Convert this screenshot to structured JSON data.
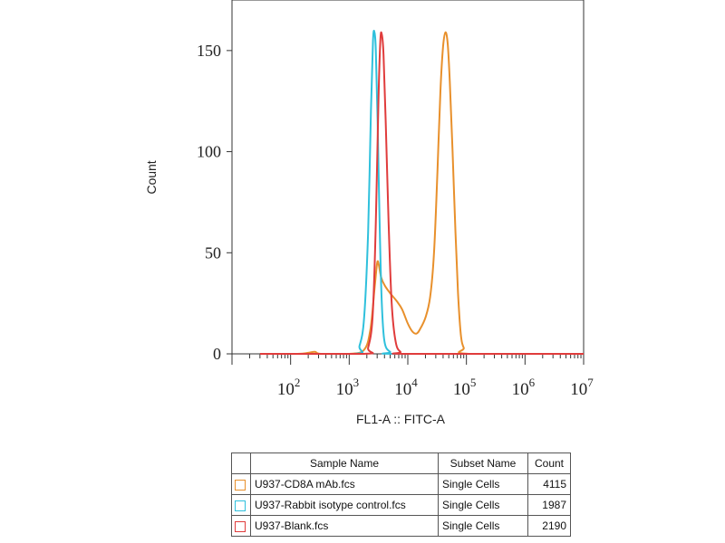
{
  "chart_data": {
    "type": "line",
    "xlabel": "FL1-A :: FITC-A",
    "ylabel": "Count",
    "xscale": "log",
    "xlim": [
      10,
      10000000
    ],
    "ylim": [
      0,
      175
    ],
    "x_ticks": [
      {
        "value": 100,
        "base": "10",
        "exp": "2"
      },
      {
        "value": 1000,
        "base": "10",
        "exp": "3"
      },
      {
        "value": 10000,
        "base": "10",
        "exp": "4"
      },
      {
        "value": 100000,
        "base": "10",
        "exp": "5"
      },
      {
        "value": 1000000,
        "base": "10",
        "exp": "6"
      },
      {
        "value": 10000000,
        "base": "10",
        "exp": "7"
      }
    ],
    "y_ticks": [
      0,
      50,
      100,
      150
    ],
    "grid": false,
    "series": [
      {
        "name": "U937-CD8A mAb.fcs",
        "color": "#E8902C",
        "points": [
          [
            30,
            0
          ],
          [
            130,
            0
          ],
          [
            200,
            0.5
          ],
          [
            260,
            1
          ],
          [
            330,
            0
          ],
          [
            1000,
            0
          ],
          [
            1800,
            2
          ],
          [
            2300,
            12
          ],
          [
            2700,
            32
          ],
          [
            3000,
            45
          ],
          [
            3200,
            44
          ],
          [
            3500,
            38
          ],
          [
            4000,
            34
          ],
          [
            5000,
            30
          ],
          [
            6500,
            26
          ],
          [
            8000,
            22
          ],
          [
            10000,
            15
          ],
          [
            12000,
            11
          ],
          [
            14000,
            10
          ],
          [
            16000,
            12
          ],
          [
            20000,
            18
          ],
          [
            24000,
            28
          ],
          [
            28000,
            50
          ],
          [
            32000,
            90
          ],
          [
            36000,
            130
          ],
          [
            40000,
            152
          ],
          [
            44000,
            159
          ],
          [
            48000,
            153
          ],
          [
            52000,
            135
          ],
          [
            58000,
            100
          ],
          [
            65000,
            60
          ],
          [
            72000,
            30
          ],
          [
            80000,
            10
          ],
          [
            90000,
            3
          ],
          [
            110000,
            0
          ],
          [
            10000000,
            0
          ]
        ]
      },
      {
        "name": "U937-Rabbit isotype control.fcs",
        "color": "#2FC0DC",
        "points": [
          [
            30,
            0
          ],
          [
            1200,
            0
          ],
          [
            1500,
            4
          ],
          [
            1800,
            18
          ],
          [
            2100,
            60
          ],
          [
            2350,
            120
          ],
          [
            2550,
            155
          ],
          [
            2700,
            159
          ],
          [
            2850,
            150
          ],
          [
            3050,
            115
          ],
          [
            3300,
            65
          ],
          [
            3600,
            25
          ],
          [
            4000,
            6
          ],
          [
            5000,
            1
          ],
          [
            7000,
            0
          ],
          [
            10000000,
            0
          ]
        ]
      },
      {
        "name": "U937-Blank.fcs",
        "color": "#E03C3C",
        "points": [
          [
            30,
            0
          ],
          [
            1800,
            0
          ],
          [
            2100,
            3
          ],
          [
            2500,
            18
          ],
          [
            2850,
            65
          ],
          [
            3150,
            125
          ],
          [
            3400,
            155
          ],
          [
            3600,
            158
          ],
          [
            3850,
            148
          ],
          [
            4200,
            115
          ],
          [
            4700,
            65
          ],
          [
            5300,
            25
          ],
          [
            6200,
            6
          ],
          [
            7500,
            1
          ],
          [
            10000,
            0
          ],
          [
            10000000,
            0
          ]
        ]
      }
    ]
  },
  "legend_table": {
    "headers": [
      "Sample Name",
      "Subset Name",
      "Count"
    ],
    "rows": [
      {
        "sample": "U937-CD8A mAb.fcs",
        "subset": "Single Cells",
        "count": "4115",
        "color": "#E8902C"
      },
      {
        "sample": "U937-Rabbit isotype control.fcs",
        "subset": "Single Cells",
        "count": "1987",
        "color": "#2FC0DC"
      },
      {
        "sample": "U937-Blank.fcs",
        "subset": "Single Cells",
        "count": "2190",
        "color": "#E03C3C"
      }
    ]
  }
}
